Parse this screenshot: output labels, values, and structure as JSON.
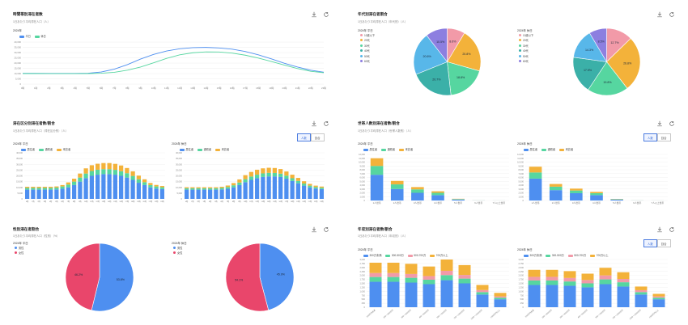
{
  "panels": {
    "hourly": {
      "title": "時間帯別滞在者数",
      "subtitle": "1日あたり平均滞在人口（人）",
      "chart_title": "2024年",
      "legend": [
        "平日",
        "休日"
      ]
    },
    "age": {
      "title": "年代別滞在者割合",
      "subtitle": "1日あたり平均滞在人口（年代別）（人）",
      "left_title": "2024年 平日",
      "right_title": "2024年 休日",
      "legend": [
        "10歳以下",
        "20代",
        "30代",
        "40代",
        "50代",
        "60代"
      ]
    },
    "residence": {
      "title": "滞在区分別滞在者数/割合",
      "subtitle": "1日あたり平均滞在人口（滞在区分別）（人）",
      "toggle": [
        "人数",
        "割合"
      ],
      "left_title": "2024年 平日",
      "right_title": "2024年 休日",
      "legend": [
        "居住者",
        "通勤者",
        "来訪者"
      ]
    },
    "gender": {
      "title": "性別滞在者割合",
      "subtitle": "1日あたり平均滞在人口（性別）（%）",
      "left_title": "2024年 平日",
      "right_title": "2024年 休日",
      "legend": [
        "男性",
        "女性"
      ]
    },
    "residents": {
      "title": "世帯人数別滞在者数/割合",
      "subtitle": "1日あたり平均滞在人口（世帯人数別）（人）",
      "toggle": [
        "人数",
        "割合"
      ],
      "left_title": "2024年 平日",
      "right_title": "2024年 休日",
      "legend": [
        "居住者",
        "通勤者",
        "来訪者"
      ]
    },
    "income": {
      "title": "年収別滞在者数/割合",
      "subtitle": "1日あたり平均滞在人口（年収別）（人）",
      "toggle": [
        "人数",
        "割合"
      ],
      "left_title": "2024年 平日",
      "right_title": "2024年 休日",
      "legend": [
        "300万未満",
        "300-500万",
        "500-700万",
        "700万以上"
      ]
    }
  },
  "colors": {
    "blue": "#4e8ff0",
    "green": "#56d6a0",
    "yellow": "#f3b23a",
    "red": "#e9466b",
    "teal": "#3bb0a8",
    "cyan": "#58b7e9",
    "pink": "#f29aa8",
    "purple": "#8d7fe0"
  },
  "chart_data": [
    {
      "id": "hourly",
      "type": "line",
      "x": [
        "0時",
        "1時",
        "2時",
        "3時",
        "4時",
        "5時",
        "6時",
        "7時",
        "8時",
        "9時",
        "10時",
        "11時",
        "12時",
        "13時",
        "14時",
        "15時",
        "16時",
        "17時",
        "18時",
        "19時",
        "20時",
        "21時",
        "22時",
        "23時"
      ],
      "series": [
        {
          "name": "平日",
          "values": [
            10200,
            10200,
            10100,
            10100,
            10100,
            10300,
            11500,
            14200,
            18500,
            23800,
            28200,
            31500,
            33600,
            34700,
            34900,
            34400,
            33200,
            31000,
            27800,
            24000,
            19800,
            16200,
            13200,
            11300
          ]
        },
        {
          "name": "休日",
          "values": [
            10000,
            10000,
            9950,
            9950,
            9950,
            10000,
            10300,
            11200,
            13200,
            16200,
            20200,
            24500,
            27800,
            29800,
            30600,
            30500,
            29500,
            27500,
            24800,
            21500,
            18000,
            14800,
            12200,
            10800
          ]
        }
      ],
      "ylim": [
        0,
        40000
      ],
      "yticks": [
        "40,000",
        "35,000",
        "30,000",
        "25,000",
        "20,000",
        "15,000",
        "10,000",
        "5,000",
        "0"
      ]
    },
    {
      "id": "age-weekday",
      "type": "pie",
      "labels": [
        "10歳以下",
        "20代",
        "30代",
        "40代",
        "50代",
        "60代"
      ],
      "values": [
        8.6,
        20.8,
        18.8,
        20.7,
        20.6,
        10.5
      ]
    },
    {
      "id": "age-holiday",
      "type": "pie",
      "labels": [
        "10歳以下",
        "20代",
        "30代",
        "40代",
        "50代",
        "60代"
      ],
      "values": [
        12.7,
        26.8,
        19.8,
        17.9,
        14.3,
        8.5
      ]
    },
    {
      "id": "residence-weekday",
      "type": "bar",
      "stacked": true,
      "categories": [
        "0時",
        "1時",
        "2時",
        "3時",
        "4時",
        "5時",
        "6時",
        "7時",
        "8時",
        "9時",
        "10時",
        "11時",
        "12時",
        "13時",
        "14時",
        "15時",
        "16時",
        "17時",
        "18時",
        "19時",
        "20時",
        "21時",
        "22時",
        "23時"
      ],
      "series": [
        {
          "name": "居住者",
          "values": [
            8000,
            8000,
            8000,
            8000,
            8000,
            8200,
            8800,
            10000,
            12000,
            15000,
            18000,
            20000,
            21000,
            21500,
            21500,
            21000,
            20000,
            18500,
            16500,
            14000,
            12000,
            10000,
            9000,
            8500
          ]
        },
        {
          "name": "通勤者",
          "values": [
            1500,
            1500,
            1500,
            1500,
            1500,
            1600,
            2000,
            2500,
            3000,
            3500,
            4000,
            4200,
            4300,
            4300,
            4300,
            4200,
            4000,
            3800,
            3400,
            3000,
            2500,
            2000,
            1800,
            1600
          ]
        },
        {
          "name": "来訪者",
          "values": [
            1000,
            1000,
            1000,
            1000,
            1000,
            1000,
            1200,
            1800,
            2500,
            3500,
            4500,
            5000,
            5200,
            5300,
            5300,
            5200,
            5000,
            4500,
            4000,
            3200,
            2500,
            1800,
            1300,
            1100
          ]
        }
      ],
      "ylim": [
        0,
        40000
      ],
      "yticks": [
        "40,000",
        "35,000",
        "30,000",
        "25,000",
        "20,000",
        "15,000",
        "10,000",
        "5,000",
        "0"
      ]
    },
    {
      "id": "residence-holiday",
      "type": "bar",
      "stacked": true,
      "categories": [
        "0時",
        "1時",
        "2時",
        "3時",
        "4時",
        "5時",
        "6時",
        "7時",
        "8時",
        "9時",
        "10時",
        "11時",
        "12時",
        "13時",
        "14時",
        "15時",
        "16時",
        "17時",
        "18時",
        "19時",
        "20時",
        "21時",
        "22時",
        "23時"
      ],
      "series": [
        {
          "name": "居住者",
          "values": [
            8000,
            8000,
            8000,
            8000,
            8000,
            8000,
            8200,
            8800,
            10000,
            12000,
            14500,
            16500,
            18000,
            19000,
            19500,
            19500,
            19000,
            17500,
            15500,
            13500,
            11500,
            10000,
            9000,
            8500
          ]
        },
        {
          "name": "通勤者",
          "values": [
            1200,
            1200,
            1200,
            1200,
            1200,
            1200,
            1300,
            1500,
            1800,
            2200,
            2600,
            2900,
            3000,
            3100,
            3100,
            3000,
            2900,
            2700,
            2400,
            2100,
            1800,
            1500,
            1300,
            1200
          ]
        },
        {
          "name": "来訪者",
          "values": [
            900,
            900,
            900,
            900,
            900,
            900,
            1000,
            1300,
            1900,
            2700,
            3500,
            4000,
            4300,
            4400,
            4400,
            4300,
            4000,
            3600,
            3100,
            2600,
            2000,
            1500,
            1200,
            1000
          ]
        }
      ],
      "ylim": [
        0,
        40000
      ],
      "yticks": [
        "40,000",
        "35,000",
        "30,000",
        "25,000",
        "20,000",
        "15,000",
        "10,000",
        "5,000",
        "0"
      ]
    },
    {
      "id": "gender-weekday",
      "type": "pie",
      "labels": [
        "男性",
        "女性"
      ],
      "values": [
        53.8,
        46.2
      ]
    },
    {
      "id": "gender-holiday",
      "type": "pie",
      "labels": [
        "男性",
        "女性"
      ],
      "values": [
        45.9,
        54.1
      ]
    },
    {
      "id": "residents-weekday",
      "type": "bar",
      "stacked": true,
      "categories": [
        "1人世帯",
        "2人世帯",
        "3人世帯",
        "4人世帯",
        "5人世帯",
        "6人世帯",
        "7人以上世帯"
      ],
      "series": [
        {
          "name": "居住者",
          "values": [
            6700,
            3000,
            2000,
            1400,
            250,
            20,
            10
          ]
        },
        {
          "name": "通勤者",
          "values": [
            2300,
            1200,
            900,
            600,
            120,
            10,
            5
          ]
        },
        {
          "name": "来訪者",
          "values": [
            2000,
            900,
            600,
            400,
            80,
            10,
            5
          ]
        }
      ],
      "ylim": [
        0,
        12000
      ],
      "yticks": [
        "12,000",
        "11,000",
        "10,000",
        "9,000",
        "8,000",
        "7,000",
        "6,000",
        "5,000",
        "4,000",
        "3,000",
        "2,000",
        "1,000",
        "0"
      ]
    },
    {
      "id": "residents-holiday",
      "type": "bar",
      "stacked": true,
      "categories": [
        "1人世帯",
        "2人世帯",
        "3人世帯",
        "4人世帯",
        "5人世帯",
        "6人世帯",
        "7人以上世帯"
      ],
      "series": [
        {
          "name": "居住者",
          "values": [
            5700,
            2700,
            1900,
            1400,
            250,
            20,
            10
          ]
        },
        {
          "name": "通勤者",
          "values": [
            1600,
            900,
            700,
            500,
            100,
            10,
            5
          ]
        },
        {
          "name": "来訪者",
          "values": [
            1500,
            700,
            500,
            350,
            70,
            10,
            5
          ]
        }
      ],
      "ylim": [
        0,
        12000
      ],
      "yticks": [
        "12,000",
        "11,000",
        "10,000",
        "9,000",
        "8,000",
        "7,000",
        "6,000",
        "5,000",
        "4,000",
        "3,000",
        "2,000",
        "1,000",
        "0"
      ]
    },
    {
      "id": "income-weekday",
      "type": "bar",
      "stacked": true,
      "categories": [
        "200万円未満",
        "200〜300万円",
        "300〜400万円",
        "400〜500万円",
        "500〜700万円",
        "700〜1000万円",
        "1000〜1500万円",
        "1500万円以上"
      ],
      "series": [
        {
          "name": "300万未満",
          "values": [
            1600,
            1600,
            1550,
            1450,
            1700,
            1500,
            800,
            500
          ]
        },
        {
          "name": "300-500万",
          "values": [
            300,
            300,
            300,
            280,
            320,
            300,
            150,
            100
          ]
        },
        {
          "name": "500-700万",
          "values": [
            250,
            250,
            240,
            230,
            270,
            230,
            130,
            80
          ]
        },
        {
          "name": "700万以上",
          "values": [
            650,
            650,
            640,
            600,
            710,
            620,
            320,
            220
          ]
        }
      ],
      "ylim": [
        0,
        3000
      ],
      "yticks": [
        "3,000",
        "2,750",
        "2,500",
        "2,250",
        "2,000",
        "1,750",
        "1,500",
        "1,250",
        "1,000",
        "750",
        "500",
        "250",
        "0"
      ]
    },
    {
      "id": "income-holiday",
      "type": "bar",
      "stacked": true,
      "categories": [
        "200万円未満",
        "200〜300万円",
        "300〜400万円",
        "400〜500万円",
        "500〜700万円",
        "700〜1000万円",
        "1000〜1500万円",
        "1500万円以上"
      ],
      "series": [
        {
          "name": "300万未満",
          "values": [
            1400,
            1400,
            1350,
            1250,
            1450,
            1300,
            800,
            500
          ]
        },
        {
          "name": "300-500万",
          "values": [
            280,
            280,
            270,
            250,
            300,
            270,
            150,
            100
          ]
        },
        {
          "name": "500-700万",
          "values": [
            230,
            230,
            220,
            210,
            250,
            210,
            120,
            80
          ]
        },
        {
          "name": "700万以上",
          "values": [
            440,
            440,
            430,
            400,
            480,
            420,
            230,
            160
          ]
        }
      ],
      "ylim": [
        0,
        3000
      ],
      "yticks": [
        "3,000",
        "2,750",
        "2,500",
        "2,250",
        "2,000",
        "1,750",
        "1,500",
        "1,250",
        "1,000",
        "750",
        "500",
        "250",
        "0"
      ]
    }
  ]
}
